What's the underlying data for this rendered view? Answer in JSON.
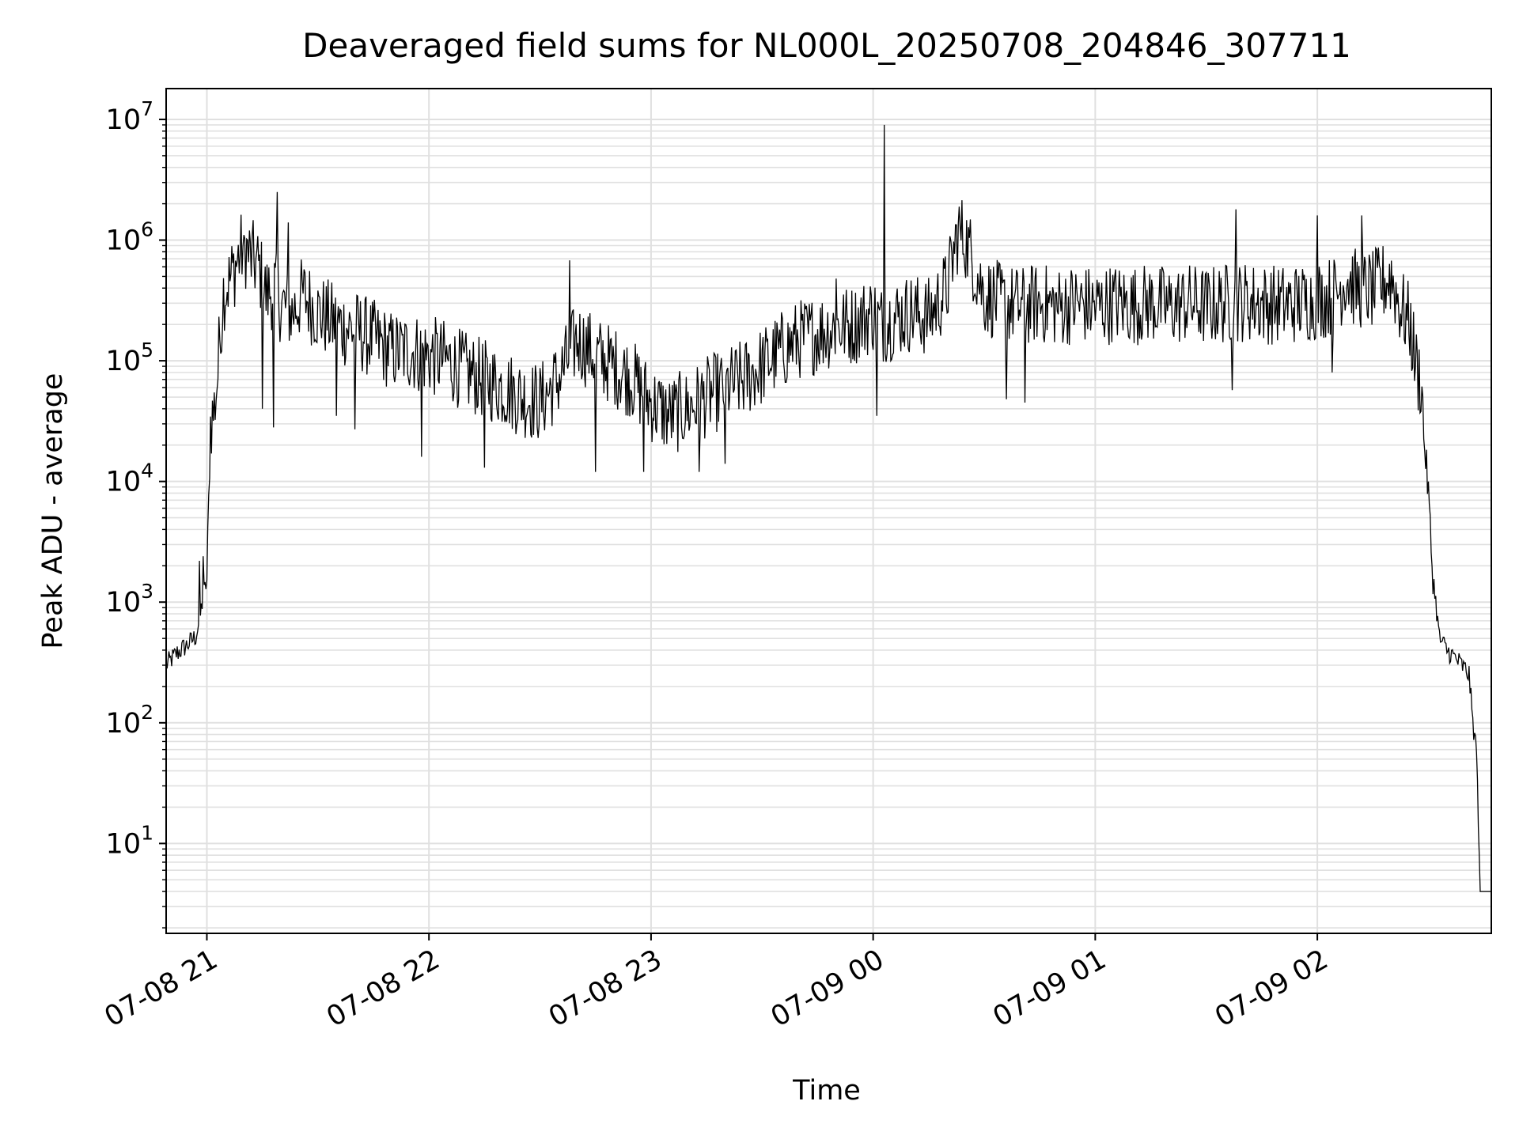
{
  "chart_data": {
    "type": "line",
    "title": "Deaveraged field sums for NL000L_20250708_204846_307711",
    "xlabel": "Time",
    "ylabel": "Peak ADU - average",
    "yscale": "log",
    "grid": true,
    "grid_which": "both",
    "line_color": "#000000",
    "grid_color": "#e0e0e0",
    "xlim": [
      "07-08 20:49",
      "07-09 02:47"
    ],
    "ylim": [
      1.8,
      18000000
    ],
    "x_ticks": [
      {
        "t": "07-08 21:00",
        "label": "07-08 21"
      },
      {
        "t": "07-08 22:00",
        "label": "07-08 22"
      },
      {
        "t": "07-08 23:00",
        "label": "07-08 23"
      },
      {
        "t": "07-09 00:00",
        "label": "07-09 00"
      },
      {
        "t": "07-09 01:00",
        "label": "07-09 01"
      },
      {
        "t": "07-09 02:00",
        "label": "07-09 02"
      }
    ],
    "y_ticks": [
      {
        "base": "10",
        "exp": "1",
        "value": 10
      },
      {
        "base": "10",
        "exp": "2",
        "value": 100
      },
      {
        "base": "10",
        "exp": "3",
        "value": 1000
      },
      {
        "base": "10",
        "exp": "4",
        "value": 10000
      },
      {
        "base": "10",
        "exp": "5",
        "value": 100000
      },
      {
        "base": "10",
        "exp": "6",
        "value": 1000000
      },
      {
        "base": "10",
        "exp": "7",
        "value": 10000000
      }
    ],
    "series": [
      {
        "points": [
          [
            "07-08 20:49",
            300
          ],
          [
            "07-08 20:52",
            380
          ],
          [
            "07-08 20:55",
            450
          ],
          [
            "07-08 20:57",
            520
          ],
          [
            "07-08 20:58",
            700
          ],
          [
            "07-08 20:59",
            1100
          ],
          [
            "07-08 21:00",
            1500
          ],
          [
            "07-08 21:01",
            30000
          ],
          [
            "07-08 21:02",
            40000
          ],
          [
            "07-08 21:03",
            80000
          ],
          [
            "07-08 21:04",
            350000
          ],
          [
            "07-08 21:06",
            450000
          ],
          [
            "07-08 21:08",
            650000
          ],
          [
            "07-08 21:10",
            900000
          ],
          [
            "07-08 21:12",
            700000
          ],
          [
            "07-08 21:14",
            600000
          ],
          [
            "07-08 21:16",
            350000
          ],
          [
            "07-08 21:18",
            400000
          ],
          [
            "07-08 21:20",
            300000
          ],
          [
            "07-08 21:23",
            250000
          ],
          [
            "07-08 21:26",
            350000
          ],
          [
            "07-08 21:30",
            250000
          ],
          [
            "07-08 21:35",
            200000
          ],
          [
            "07-08 21:40",
            180000
          ],
          [
            "07-08 21:45",
            150000
          ],
          [
            "07-08 21:50",
            120000
          ],
          [
            "07-08 21:55",
            120000
          ],
          [
            "07-08 22:00",
            110000
          ],
          [
            "07-08 22:05",
            100000
          ],
          [
            "07-08 22:10",
            80000
          ],
          [
            "07-08 22:15",
            70000
          ],
          [
            "07-08 22:20",
            60000
          ],
          [
            "07-08 22:25",
            50000
          ],
          [
            "07-08 22:30",
            45000
          ],
          [
            "07-08 22:35",
            70000
          ],
          [
            "07-08 22:40",
            150000
          ],
          [
            "07-08 22:45",
            110000
          ],
          [
            "07-08 22:50",
            90000
          ],
          [
            "07-08 22:55",
            70000
          ],
          [
            "07-08 23:00",
            45000
          ],
          [
            "07-08 23:05",
            35000
          ],
          [
            "07-08 23:10",
            40000
          ],
          [
            "07-08 23:15",
            50000
          ],
          [
            "07-08 23:20",
            60000
          ],
          [
            "07-08 23:25",
            70000
          ],
          [
            "07-08 23:30",
            90000
          ],
          [
            "07-08 23:35",
            120000
          ],
          [
            "07-08 23:40",
            150000
          ],
          [
            "07-08 23:45",
            170000
          ],
          [
            "07-08 23:50",
            190000
          ],
          [
            "07-08 23:55",
            200000
          ],
          [
            "07-09 00:00",
            250000
          ],
          [
            "07-09 00:02",
            200000
          ],
          [
            "07-09 00:05",
            220000
          ],
          [
            "07-09 00:10",
            250000
          ],
          [
            "07-09 00:15",
            230000
          ],
          [
            "07-09 00:20",
            400000
          ],
          [
            "07-09 00:23",
            1200000
          ],
          [
            "07-09 00:25",
            1000000
          ],
          [
            "07-09 00:30",
            350000
          ],
          [
            "07-09 00:35",
            300000
          ],
          [
            "07-09 00:40",
            280000
          ],
          [
            "07-09 00:45",
            300000
          ],
          [
            "07-09 00:50",
            280000
          ],
          [
            "07-09 00:55",
            300000
          ],
          [
            "07-09 01:00",
            280000
          ],
          [
            "07-09 01:05",
            300000
          ],
          [
            "07-09 01:10",
            290000
          ],
          [
            "07-09 01:15",
            300000
          ],
          [
            "07-09 01:20",
            280000
          ],
          [
            "07-09 01:25",
            300000
          ],
          [
            "07-09 01:30",
            280000
          ],
          [
            "07-09 01:35",
            300000
          ],
          [
            "07-09 01:40",
            310000
          ],
          [
            "07-09 01:45",
            300000
          ],
          [
            "07-09 01:50",
            290000
          ],
          [
            "07-09 01:55",
            300000
          ],
          [
            "07-09 02:00",
            320000
          ],
          [
            "07-09 02:05",
            350000
          ],
          [
            "07-09 02:08",
            500000
          ],
          [
            "07-09 02:10",
            400000
          ],
          [
            "07-09 02:15",
            380000
          ],
          [
            "07-09 02:20",
            500000
          ],
          [
            "07-09 02:22",
            300000
          ],
          [
            "07-09 02:25",
            200000
          ],
          [
            "07-09 02:27",
            80000
          ],
          [
            "07-09 02:28",
            70000
          ],
          [
            "07-09 02:29",
            20000
          ],
          [
            "07-09 02:30",
            8000
          ],
          [
            "07-09 02:31",
            2000
          ],
          [
            "07-09 02:32",
            1000
          ],
          [
            "07-09 02:33",
            500
          ],
          [
            "07-09 02:35",
            400
          ],
          [
            "07-09 02:37",
            350
          ],
          [
            "07-09 02:39",
            300
          ],
          [
            "07-09 02:41",
            250
          ],
          [
            "07-09 02:42",
            100
          ],
          [
            "07-09 02:43",
            60
          ],
          [
            "07-09 02:44",
            4
          ],
          [
            "07-09 02:47",
            4
          ]
        ],
        "spikes": [
          [
            "07-08 20:58",
            2200
          ],
          [
            "07-08 20:59",
            2400
          ],
          [
            "07-08 21:10",
            1100000
          ],
          [
            "07-08 21:19",
            2500000
          ],
          [
            "07-08 21:22",
            1400000
          ],
          [
            "07-08 22:38",
            680000
          ],
          [
            "07-08 23:50",
            480000
          ],
          [
            "07-09 00:03",
            9000000
          ],
          [
            "07-09 01:38",
            1800000
          ],
          [
            "07-09 02:00",
            1600000
          ],
          [
            "07-09 02:12",
            1600000
          ]
        ],
        "dips": [
          [
            "07-08 21:04",
            120000
          ],
          [
            "07-08 21:15",
            40000
          ],
          [
            "07-08 21:18",
            28000
          ],
          [
            "07-08 21:35",
            35000
          ],
          [
            "07-08 21:40",
            27000
          ],
          [
            "07-08 21:58",
            16000
          ],
          [
            "07-08 22:15",
            13000
          ],
          [
            "07-08 22:45",
            12000
          ],
          [
            "07-08 22:58",
            12000
          ],
          [
            "07-08 23:13",
            12000
          ],
          [
            "07-08 23:20",
            14000
          ],
          [
            "07-09 00:01",
            35000
          ],
          [
            "07-09 00:36",
            48000
          ],
          [
            "07-09 00:41",
            45000
          ],
          [
            "07-09 01:37",
            57000
          ],
          [
            "07-09 02:04",
            80000
          ]
        ]
      }
    ]
  }
}
